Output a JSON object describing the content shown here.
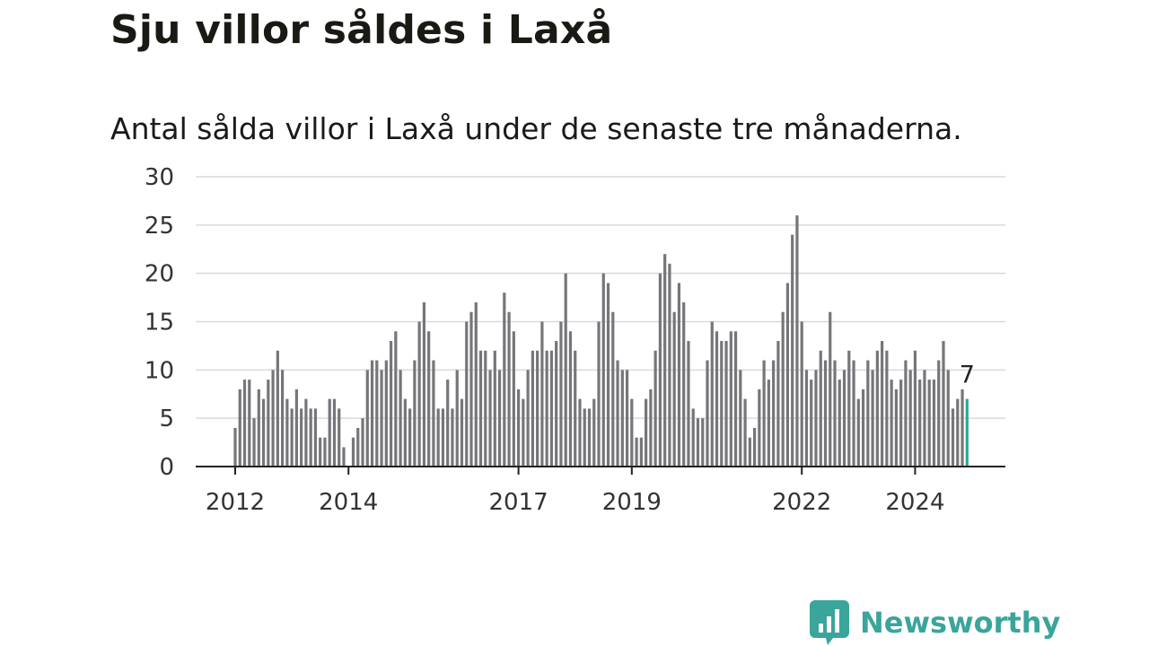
{
  "title": "Sju villor såldes i Laxå",
  "subtitle": "Antal sålda villor i Laxå under de senaste tre månaderna.",
  "brand": {
    "name": "Newsworthy",
    "logo_icon": "bar-chart-speech-bubble-icon",
    "color": "#3aa59b"
  },
  "chart_data": {
    "type": "bar",
    "x_start": "2012-01",
    "x_end": "2024-12",
    "values": [
      4,
      8,
      9,
      9,
      5,
      8,
      7,
      9,
      10,
      12,
      10,
      7,
      6,
      8,
      6,
      7,
      6,
      6,
      3,
      3,
      7,
      7,
      6,
      2,
      0,
      3,
      4,
      5,
      10,
      11,
      11,
      10,
      11,
      13,
      14,
      10,
      7,
      6,
      11,
      15,
      17,
      14,
      11,
      6,
      6,
      9,
      6,
      10,
      7,
      15,
      16,
      17,
      12,
      12,
      10,
      12,
      10,
      18,
      16,
      14,
      8,
      7,
      10,
      12,
      12,
      15,
      12,
      12,
      13,
      15,
      20,
      14,
      12,
      7,
      6,
      6,
      7,
      15,
      20,
      19,
      16,
      11,
      10,
      10,
      7,
      3,
      3,
      7,
      8,
      12,
      20,
      22,
      21,
      16,
      19,
      17,
      13,
      6,
      5,
      5,
      11,
      15,
      14,
      13,
      13,
      14,
      14,
      10,
      7,
      3,
      4,
      8,
      11,
      9,
      11,
      13,
      16,
      19,
      24,
      26,
      15,
      10,
      9,
      10,
      12,
      11,
      16,
      11,
      9,
      10,
      12,
      11,
      7,
      8,
      11,
      10,
      12,
      13,
      12,
      9,
      8,
      9,
      11,
      10,
      12,
      9,
      10,
      9,
      9,
      11,
      13,
      10,
      6,
      7,
      8,
      7
    ],
    "highlight_index": 155,
    "highlight_label": "7",
    "bar_color": "#76757a",
    "highlight_color": "#2ea69b",
    "ylim": [
      0,
      30
    ],
    "yticks": [
      0,
      5,
      10,
      15,
      20,
      25,
      30
    ],
    "xticks": [
      {
        "label": "2012",
        "index": 0
      },
      {
        "label": "2014",
        "index": 24
      },
      {
        "label": "2017",
        "index": 60
      },
      {
        "label": "2019",
        "index": 84
      },
      {
        "label": "2022",
        "index": 120
      },
      {
        "label": "2024",
        "index": 144
      }
    ],
    "grid": true,
    "xlabel": "",
    "ylabel": ""
  }
}
